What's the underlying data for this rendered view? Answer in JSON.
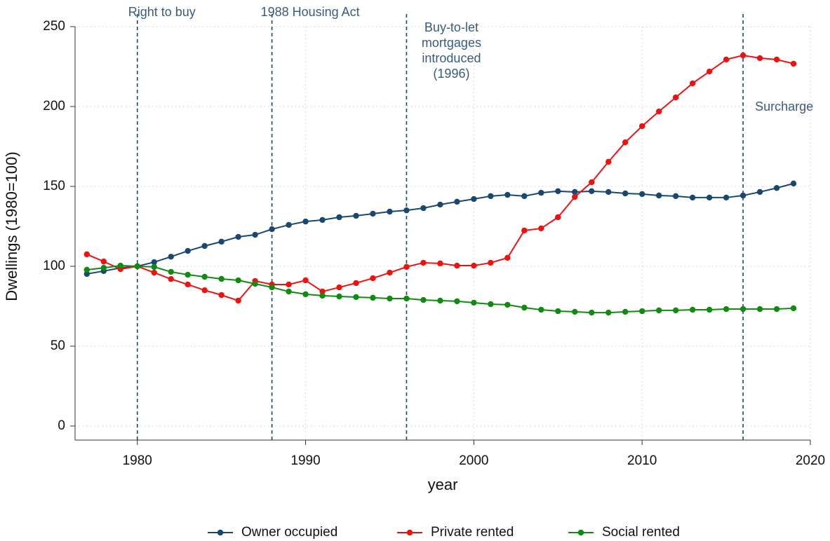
{
  "chart_data": {
    "type": "line",
    "x": [
      1977,
      1978,
      1979,
      1980,
      1981,
      1982,
      1983,
      1984,
      1985,
      1986,
      1987,
      1988,
      1989,
      1990,
      1991,
      1992,
      1993,
      1994,
      1995,
      1996,
      1997,
      1998,
      1999,
      2000,
      2001,
      2002,
      2003,
      2004,
      2005,
      2006,
      2007,
      2008,
      2009,
      2010,
      2011,
      2012,
      2013,
      2014,
      2015,
      2016,
      2017,
      2018,
      2019
    ],
    "series": [
      {
        "name": "Owner occupied",
        "color": "#1a476f",
        "values": [
          95.2,
          97,
          99,
          100,
          102.6,
          106,
          109.6,
          112.7,
          115.4,
          118.4,
          119.7,
          123.2,
          125.9,
          128,
          129,
          130.7,
          131.6,
          132.9,
          134.2,
          135,
          136.4,
          138.6,
          140.4,
          142.1,
          143.9,
          144.7,
          143.9,
          146,
          147,
          146.5,
          147,
          146.5,
          145.6,
          145.2,
          144.3,
          143.9,
          143,
          143,
          143,
          144.3,
          146.5,
          149,
          151.8
        ]
      },
      {
        "name": "Private rented",
        "color": "#f01010",
        "values": [
          107.5,
          103,
          98.2,
          100,
          96,
          92,
          88.6,
          85,
          82,
          78.5,
          90.8,
          88.6,
          88.6,
          91.2,
          84.2,
          86.8,
          89.5,
          92.5,
          96,
          99.6,
          102.2,
          101.8,
          100.4,
          100.4,
          102.2,
          105.3,
          122.4,
          123.7,
          130.7,
          143.4,
          152.6,
          165.4,
          177.6,
          187.7,
          196.9,
          205.7,
          214.5,
          221.9,
          229.4,
          232,
          230.3,
          229.4,
          226.8
        ]
      },
      {
        "name": "Social rented",
        "color": "#108a10",
        "values": [
          97.8,
          99,
          100.4,
          100,
          99.6,
          96.5,
          94.7,
          93.4,
          92.1,
          91.2,
          89,
          86.8,
          84.2,
          82.5,
          81.6,
          81.1,
          80.7,
          80.3,
          79.8,
          79.8,
          78.9,
          78.5,
          78.1,
          77.2,
          76.3,
          75.9,
          74.1,
          72.8,
          71.9,
          71.5,
          71,
          71,
          71.5,
          71.9,
          72.4,
          72.4,
          72.8,
          72.8,
          73.2,
          73.2,
          73.2,
          73.2,
          73.7
        ]
      }
    ],
    "x_label": "year",
    "y_label": "Dwellings (1980=100)",
    "xlim": [
      1976.3,
      2020
    ],
    "xticks": [
      1980,
      1990,
      2000,
      2010,
      2020
    ],
    "ylim": [
      -8.8,
      250
    ],
    "yticks": [
      0,
      50,
      100,
      150,
      200,
      250
    ],
    "grid": true,
    "legend": "bottom",
    "annotations": [
      {
        "x": 1980,
        "label": [
          "Right to buy"
        ]
      },
      {
        "x": 1988,
        "label": [
          "1988 Housing Act"
        ]
      },
      {
        "x": 1996,
        "label": [
          "Buy-to-let",
          "mortgages",
          "introduced",
          "(1996)"
        ]
      },
      {
        "x": 2016,
        "label": [
          "Surcharge"
        ]
      }
    ]
  }
}
